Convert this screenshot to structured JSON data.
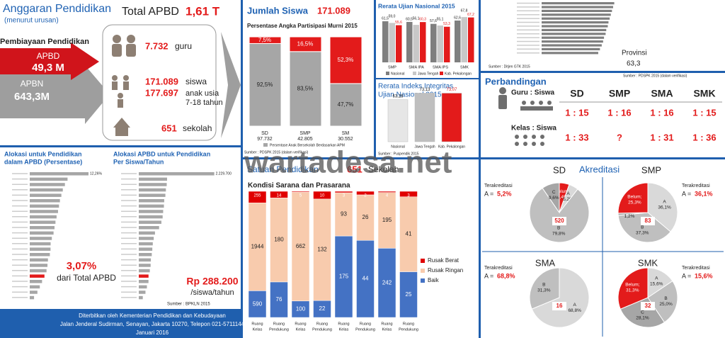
{
  "watermark": "wartadesa.net",
  "anggaran": {
    "title": "Anggaran Pendidikan",
    "subtitle": "(menurut urusan)",
    "total_label": "Total APBD",
    "total_value": "1,61 T",
    "pembiayaan": "Pembiayaan Pendidikan",
    "apbd": {
      "label": "APBD",
      "value": "49,3 M"
    },
    "apbn": {
      "label": "APBN",
      "value": "643,3M"
    },
    "guru": {
      "value": "7.732",
      "label": "guru"
    },
    "siswa": {
      "value": "171.089",
      "label": "siswa"
    },
    "anak": {
      "value": "177.697",
      "label": [
        "anak usia",
        "7-18 tahun"
      ]
    },
    "sekolah": {
      "value": "651",
      "label": "sekolah"
    }
  },
  "alokasi_persen": {
    "title": [
      "Alokasi untuk Pendidikan",
      "dalam APBD (Persentase)"
    ],
    "values": [
      12.26,
      7.89,
      7.34,
      6.9,
      6.6,
      6.3,
      6.1,
      5.9,
      5.6,
      5.37,
      5.17,
      4.97,
      4.61,
      4.36,
      4.34,
      4.2,
      3.8,
      3.7,
      3.5,
      3.07,
      2.57,
      2.1,
      1.6,
      0.9
    ],
    "top_label": "12,26%",
    "xlim": [
      0,
      13
    ],
    "color": "#a6a6a6",
    "highlight_color": "#e31b1b",
    "highlight_value": 3.07,
    "highlight_label": "3,07%",
    "caption": "dari Total APBD"
  },
  "alokasi_siswa": {
    "title": [
      "Alokasi APBD untuk Pendidikan",
      "Per Siswa/Tahun"
    ],
    "values": [
      2229700,
      835800,
      825500,
      801000,
      786000,
      751400,
      743000,
      720000,
      705000,
      668100,
      600000,
      479000,
      442100,
      414000,
      400000,
      384000,
      357400,
      350000,
      326000,
      288200,
      286500,
      240000,
      198000,
      118700
    ],
    "top_label": "2.229.700",
    "xlim": [
      0,
      2300000
    ],
    "color": "#a6a6a6",
    "highlight_color": "#e31b1b",
    "highlight_value": 288200,
    "highlight_label": "Rp 288.200",
    "caption": "/siswa/tahun",
    "source": "Sumber : BPKLN 2015"
  },
  "footer": [
    "Diterbitkan oleh Kementerian Pendidikan dan Kebudayaan",
    "Jalan Jenderal Sudirman, Senayan, Jakarta 10270, Telepon 021-5711144",
    "Januari 2016"
  ],
  "jumlah_siswa": {
    "title": "Jumlah Siswa",
    "total": "171.089",
    "subtitle": "Persentase Angka Partisipasi Murni 2015",
    "ylim": [
      0,
      100
    ],
    "colors": [
      "#a6a6a6",
      "#e31b1b"
    ],
    "bars": [
      {
        "category": "SD",
        "count": "97.732",
        "values": [
          92.5,
          7.5
        ],
        "value_labels": [
          "92,5%",
          "7,5%"
        ]
      },
      {
        "category": "SMP",
        "count": "42.805",
        "values": [
          83.5,
          16.5
        ],
        "value_labels": [
          "83,5%",
          "16,5%"
        ]
      },
      {
        "category": "SM",
        "count": "30.552",
        "values": [
          47.7,
          52.3
        ],
        "value_labels": [
          "47,7%",
          "52,3%"
        ]
      }
    ],
    "legend": "Persentase Anak Bersekolah Berdasarkan APM",
    "source": "Sumber : PDSPK 2015 (dalam verifikasi)"
  },
  "rerata_un": {
    "type": "bar",
    "title": "Rerata Ujian Nasional 2015",
    "categories": [
      "SMP",
      "SMA IPA",
      "SMA IPS",
      "SMK"
    ],
    "ylim": [
      0,
      70
    ],
    "series": [
      {
        "name": "Nasional",
        "color": "#7f7f7f",
        "values": [
          61.5,
          60.5,
          57.6,
          62.6
        ],
        "value_labels": [
          "61,5",
          "60,5",
          "57,6",
          "62,6"
        ]
      },
      {
        "name": "Jawa Tengah",
        "color": "#c8c8c8",
        "values": [
          59.0,
          56.1,
          55.1,
          67.8
        ],
        "value_labels": [
          "59,0",
          "56,1",
          "55,1",
          "67,8"
        ]
      },
      {
        "name": "Kab. Pekalongan",
        "color": "#e31b1b",
        "values": [
          55.6,
          60.3,
          53.3,
          67.2
        ],
        "value_labels": [
          "55,6",
          "60,3",
          "53,3",
          "67,2"
        ]
      }
    ]
  },
  "integritas": {
    "type": "bar",
    "title": [
      "Rerata Indeks Integritas",
      "Ujian Nasional 2015"
    ],
    "categories": [
      "Nasional",
      "Jawa Tengah",
      "Kab. Pekalongan"
    ],
    "values": [
      63.28,
      73.13,
      73.07
    ],
    "value_labels": [
      "63,28",
      "73,13",
      "73,07"
    ],
    "colors": [
      "#e6e6e6",
      "#bfbfbf",
      "#e31b1b"
    ],
    "ylim": [
      0,
      80
    ],
    "source": "Sumber : Puspendik 2015"
  },
  "ranking": {
    "values": [
      62.7,
      62.5,
      62.3,
      62.1,
      61.9,
      61.69,
      61.57,
      61.3,
      61.19,
      60.91,
      60.75,
      60.51,
      60.2,
      59.9
    ],
    "xlim": [
      50,
      63
    ],
    "color": "#7f7f7f",
    "label": "Provinsi",
    "value": "63,3",
    "source": "Sumber : Ditjen GTK 2015"
  },
  "perbandingan": {
    "title": "Perbandingan",
    "source": "Sumber : PDSPK 2015 (dalam verifikasi)",
    "columns": [
      "SD",
      "SMP",
      "SMA",
      "SMK"
    ],
    "rows": [
      {
        "label": "Guru : Siswa",
        "cells": [
          "1 : 15",
          "1 : 16",
          "1 : 16",
          "1 : 15"
        ]
      },
      {
        "label": "Kelas : Siswa",
        "cells": [
          "1 : 33",
          "?",
          "1 : 31",
          "1 : 36"
        ]
      }
    ]
  },
  "satuan": {
    "title": "Satuan Pendidikan",
    "total": "651",
    "unit": "Sekolah",
    "subtitle": "Kondisi Sarana dan Prasarana",
    "categories": [
      [
        "Ruang",
        "Kelas"
      ],
      [
        "Ruang",
        "Pendukung"
      ],
      [
        "Ruang",
        "Kelas"
      ],
      [
        "Ruang",
        "Pendukung"
      ],
      [
        "Ruang",
        "Kelas"
      ],
      [
        "Ruang",
        "Pendukung"
      ],
      [
        "Ruang",
        "Kelas"
      ],
      [
        "Ruang",
        "Pendukung"
      ]
    ],
    "series": [
      {
        "name": "Baik",
        "color": "#4472c4",
        "values": [
          590,
          76,
          100,
          22,
          175,
          44,
          242,
          25
        ]
      },
      {
        "name": "Rusak Ringan",
        "color": "#f8cbad",
        "values": [
          1944,
          180,
          662,
          132,
          93,
          26,
          195,
          41
        ]
      },
      {
        "name": "Rusak Berat",
        "color": "#e00000",
        "values": [
          255,
          14,
          5,
          10,
          3,
          2,
          4,
          3
        ]
      }
    ]
  },
  "akreditasi": {
    "title": "Akreditasi",
    "colors": {
      "A": "#d9d9d9",
      "B": "#bfbfbf",
      "C": "#a6a6a6",
      "Belum;": "#e31b1b"
    },
    "pies": [
      {
        "title": "SD",
        "terakreditasi": "Terakreditasi",
        "a_label": "A =",
        "a_value": "5,2%",
        "center": "520",
        "slices": [
          {
            "name": "Belum;",
            "value": 5.4,
            "label": "5,4%"
          },
          {
            "name": "A",
            "value": 5.2,
            "label": "5,2%"
          },
          {
            "name": "B",
            "value": 79.8,
            "label": "79,8%"
          },
          {
            "name": "C",
            "value": 9.6,
            "label": "9,6%"
          }
        ]
      },
      {
        "title": "SMP",
        "terakreditasi": "Terakreditasi",
        "a_label": "A =",
        "a_value": "36,1%",
        "center": "83",
        "slices": [
          {
            "name": "A",
            "value": 36.1,
            "label": "36,1%"
          },
          {
            "name": "B",
            "value": 37.3,
            "label": "37,3%"
          },
          {
            "name": "C",
            "value": 1.2,
            "label": "1,2%"
          },
          {
            "name": "Belum;",
            "value": 25.3,
            "label": "25,3%"
          }
        ]
      },
      {
        "title": "SMA",
        "terakreditasi": "Terakreditasi",
        "a_label": "A =",
        "a_value": "68,8%",
        "center": "16",
        "slices": [
          {
            "name": "A",
            "value": 68.8,
            "label": "68,8%"
          },
          {
            "name": "B",
            "value": 31.3,
            "label": "31,3%"
          }
        ]
      },
      {
        "title": "SMK",
        "terakreditasi": "Terakreditasi",
        "a_label": "A =",
        "a_value": "15,6%",
        "center": "32",
        "slices": [
          {
            "name": "A",
            "value": 15.6,
            "label": "15,6%"
          },
          {
            "name": "B",
            "value": 25.0,
            "label": "25,0%"
          },
          {
            "name": "C",
            "value": 28.1,
            "label": "28,1%"
          },
          {
            "name": "Belum;",
            "value": 31.3,
            "label": "31,3%"
          }
        ]
      }
    ]
  }
}
